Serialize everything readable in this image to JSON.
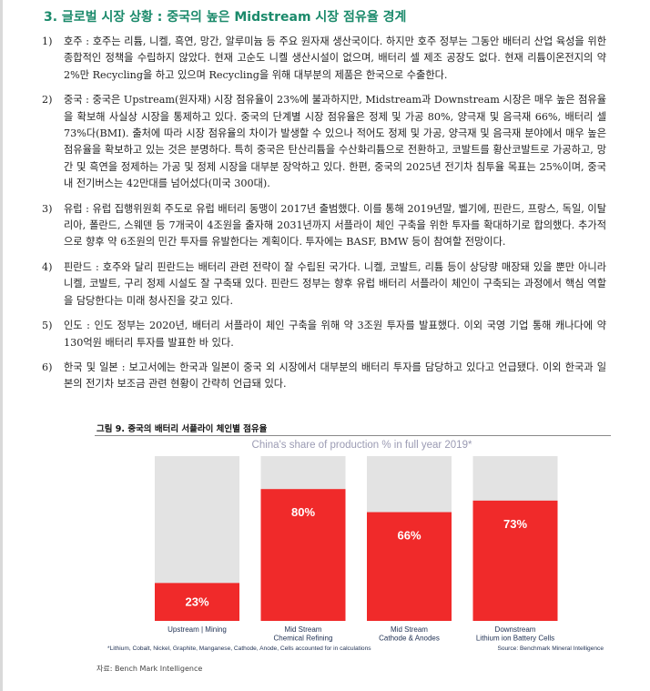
{
  "title": "3. 글로벌 시장 상황 : 중국의 높은 Midstream 시장 점유율 경계",
  "items": [
    {
      "num": "1)",
      "text": "호주 : 호주는 리튬, 니켈, 흑연, 망간, 알루미늄 등 주요 원자재 생산국이다. 하지만 호주 정부는 그동안 배터리 산업 육성을 위한 종합적인 정책을 수립하지 않았다. 현재 고순도 니켈 생산시설이 없으며, 배터리 셀 제조 공장도 없다. 현재 리튬이온전지의 약 2%만 Recycling을 하고 있으며 Recycling을 위해 대부분의 제품은 한국으로 수출한다."
    },
    {
      "num": "2)",
      "text": "중국 : 중국은 Upstream(원자재) 시장 점유율이 23%에 불과하지만, Midstream과 Downstream 시장은 매우 높은 점유율을 확보해 사실상 시장을 통제하고 있다. 중국의 단계별 시장 점유율은 정제 및 가공 80%, 양극재 및 음극재 66%, 배터리 셀 73%다(BMI). 출처에 따라 시장 점유율의 차이가 발생할 수 있으나 적어도 정제 및 가공, 양극재 및 음극재 분야에서 매우 높은 점유율을 확보하고 있는 것은 분명하다. 특히 중국은 탄산리튬을 수산화리튬으로 전환하고, 코발트를 황산코발트로 가공하고, 망간 및 흑연을 정제하는 가공 및 정제 시장을 대부분 장악하고 있다. 한편, 중국의 2025년 전기차 침투율 목표는 25%이며, 중국 내 전기버스는 42만대를 넘어섰다(미국 300대)."
    },
    {
      "num": "3)",
      "text": "유럽 : 유럽 집행위원회 주도로 유럽 배터리 동맹이 2017년 출범했다. 이를 통해 2019년말, 벨기에, 핀란드, 프랑스, 독일, 이탈리아, 폴란드, 스웨덴 등 7개국이 4조원을 출자해 2031년까지 서플라이 체인 구축을 위한 투자를 확대하기로 합의했다. 추가적으로 향후 약 6조원의 민간 투자를 유발한다는 계획이다. 투자에는 BASF, BMW 등이 참여할 전망이다."
    },
    {
      "num": "4)",
      "text": "핀란드 : 호주와 달리 핀란드는 배터리 관련 전략이 잘 수립된 국가다. 니켈, 코발트, 리튬 등이 상당량 매장돼 있을 뿐만 아니라 니켈, 코발트, 구리 정제 시설도 잘 구축돼 있다. 핀란드 정부는 향후 유럽 배터리 서플라이 체인이 구축되는 과정에서 핵심 역할을 담당한다는 미래 청사진을 갖고 있다."
    },
    {
      "num": "5)",
      "text": "인도 : 인도 정부는 2020년, 배터리 서플라이 체인 구축을 위해 약 3조원 투자를 발표했다. 이외 국영 기업 통해 캐나다에 약 130억원 배터리 투자를 발표한 바 있다."
    },
    {
      "num": "6)",
      "text": "한국 및 일본 : 보고서에는 한국과 일본이 중국 외 시장에서 대부분의 배터리 투자를 담당하고 있다고 언급됐다. 이외 한국과 일본의 전기차 보조금 관련 현황이 간략히 언급돼 있다."
    }
  ],
  "figure": {
    "caption": "그림 9. 중국의 배터리 서플라이 체인별 점유율",
    "source": "자료: Bench Mark Intelligence"
  },
  "chart_data": {
    "type": "bar",
    "title": "China's share of production % in full year 2019*",
    "categories": [
      [
        "Upstream | Mining"
      ],
      [
        "Mid Stream",
        "Chemical Refining"
      ],
      [
        "Mid Stream",
        "Cathode & Anodes"
      ],
      [
        "Downstream",
        "Lithium ion Battery Cells"
      ]
    ],
    "values": [
      23,
      80,
      66,
      73
    ],
    "value_labels": [
      "23%",
      "80%",
      "66%",
      "73%"
    ],
    "ylim": [
      0,
      100
    ],
    "grid": false,
    "footnote": "*Lithium, Cobalt, Nickel, Graphite, Manganese, Cathode, Anode, Cells accounted for in calculations",
    "source_note": "Source: Benchmark Mineral Intelligence",
    "colors": {
      "fill": "#f02a2a",
      "remainder": "#e3e3e3",
      "title": "#9b9bb3",
      "label": "#ffffff",
      "category": "#223355"
    }
  }
}
